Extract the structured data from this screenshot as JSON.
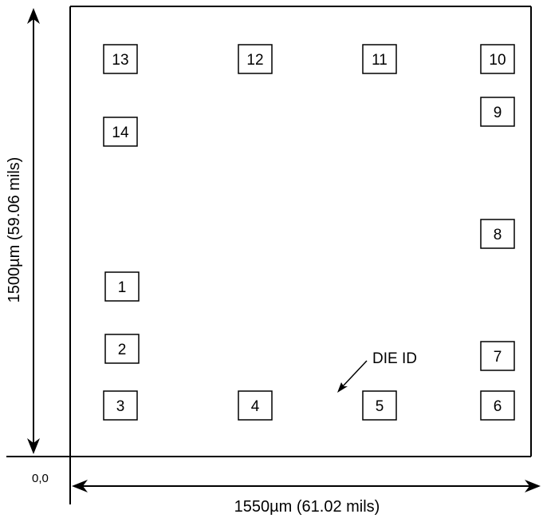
{
  "die": {
    "width_label": "1550µm (61.02 mils)",
    "height_label": "1500µm (59.06 mils)",
    "origin_label": "0,0",
    "die_id_label": "DIE ID"
  },
  "pads": [
    {
      "label": "1"
    },
    {
      "label": "2"
    },
    {
      "label": "3"
    },
    {
      "label": "4"
    },
    {
      "label": "5"
    },
    {
      "label": "6"
    },
    {
      "label": "7"
    },
    {
      "label": "8"
    },
    {
      "label": "9"
    },
    {
      "label": "10"
    },
    {
      "label": "11"
    },
    {
      "label": "12"
    },
    {
      "label": "13"
    },
    {
      "label": "14"
    }
  ]
}
